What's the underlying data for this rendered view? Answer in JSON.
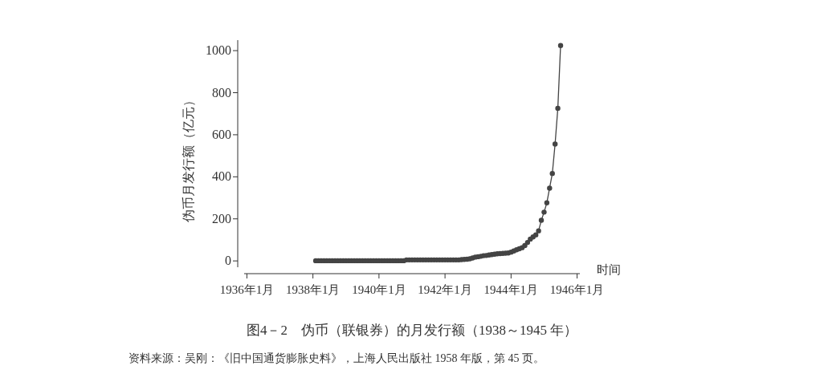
{
  "chart_data": {
    "type": "line",
    "title": "图4－2　伪币（联银券）的月发行额（1938～1945 年）",
    "xlabel": "时间",
    "ylabel": "伪币月发行额（亿元）",
    "annotations": [
      "资料来源：吴刚：《旧中国通货膨胀史料》，上海人民出版社 1958 年版，第 45 页。"
    ],
    "x": [
      "1938-02",
      "1938-03",
      "1938-04",
      "1938-05",
      "1938-06",
      "1938-07",
      "1938-08",
      "1938-09",
      "1938-10",
      "1938-11",
      "1938-12",
      "1939-01",
      "1939-02",
      "1939-03",
      "1939-04",
      "1939-05",
      "1939-06",
      "1939-07",
      "1939-08",
      "1939-09",
      "1939-10",
      "1939-11",
      "1939-12",
      "1940-01",
      "1940-02",
      "1940-03",
      "1940-04",
      "1940-05",
      "1940-06",
      "1940-07",
      "1940-08",
      "1940-09",
      "1940-10",
      "1940-11",
      "1940-12",
      "1941-01",
      "1941-02",
      "1941-03",
      "1941-04",
      "1941-05",
      "1941-06",
      "1941-07",
      "1941-08",
      "1941-09",
      "1941-10",
      "1941-11",
      "1941-12",
      "1942-01",
      "1942-02",
      "1942-03",
      "1942-04",
      "1942-05",
      "1942-06",
      "1942-07",
      "1942-08",
      "1942-09",
      "1942-10",
      "1942-11",
      "1942-12",
      "1943-01",
      "1943-02",
      "1943-03",
      "1943-04",
      "1943-05",
      "1943-06",
      "1943-07",
      "1943-08",
      "1943-09",
      "1943-10",
      "1943-11",
      "1943-12",
      "1944-01",
      "1944-02",
      "1944-03",
      "1944-04",
      "1944-05",
      "1944-06",
      "1944-07",
      "1944-08",
      "1944-09",
      "1944-10",
      "1944-11",
      "1944-12",
      "1945-01",
      "1945-02",
      "1945-03",
      "1945-04",
      "1945-05",
      "1945-06",
      "1945-07"
    ],
    "series": [
      {
        "color": "#444444",
        "values": [
          1,
          1,
          1,
          1,
          1,
          1,
          1,
          1,
          1,
          1,
          1,
          1,
          1,
          1,
          1,
          1,
          1,
          1,
          1,
          1,
          1,
          1,
          1,
          1,
          1,
          1,
          1,
          1,
          1,
          1,
          1,
          1,
          1,
          5,
          5,
          5,
          5,
          5,
          5,
          5,
          5,
          5,
          5,
          5,
          5,
          5,
          5,
          5,
          5,
          5,
          5,
          5,
          5,
          6,
          7,
          8,
          10,
          14,
          18,
          20,
          22,
          25,
          26,
          28,
          30,
          32,
          34,
          35,
          36,
          37,
          38,
          42,
          47,
          53,
          58,
          63,
          73,
          88,
          104,
          114,
          124,
          143,
          193,
          232,
          276,
          346,
          416,
          556,
          726,
          1024
        ]
      }
    ],
    "xlim": [
      "1935-12",
      "1946-02"
    ],
    "xticks": [
      {
        "value": "1936-01",
        "label": "1936年1月"
      },
      {
        "value": "1938-01",
        "label": "1938年1月"
      },
      {
        "value": "1940-01",
        "label": "1940年1月"
      },
      {
        "value": "1942-01",
        "label": "1942年1月"
      },
      {
        "value": "1944-01",
        "label": "1944年1月"
      },
      {
        "value": "1946-01",
        "label": "1946年1月"
      }
    ],
    "ylim": [
      -30,
      1050
    ],
    "yticks": [
      0,
      200,
      400,
      600,
      800,
      1000
    ],
    "marker": "circle",
    "line_style": "solid",
    "grid": false
  }
}
